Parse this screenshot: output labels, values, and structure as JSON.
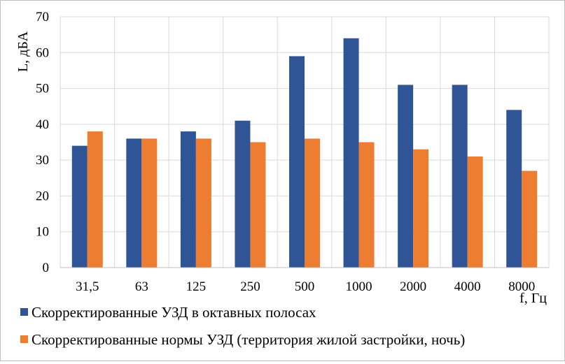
{
  "chart_data": {
    "type": "bar",
    "title": "",
    "xlabel": "f, Гц",
    "ylabel": "L, дБА",
    "ylim": [
      0,
      70
    ],
    "yticks": [
      0,
      10,
      20,
      30,
      40,
      50,
      60,
      70
    ],
    "grid": true,
    "legend_position": "bottom",
    "categories": [
      "31,5",
      "63",
      "125",
      "250",
      "500",
      "1000",
      "2000",
      "4000",
      "8000"
    ],
    "series": [
      {
        "name": "Скорректированные УЗД в октавных полосах",
        "color": "#2f5597",
        "values": [
          34,
          36,
          38,
          41,
          59,
          64,
          51,
          51,
          44
        ]
      },
      {
        "name": "Скорректированные нормы УЗД (территория жилой застройки, ночь)",
        "color": "#ed7d31",
        "values": [
          38,
          36,
          36,
          35,
          36,
          35,
          33,
          31,
          27
        ]
      }
    ]
  }
}
